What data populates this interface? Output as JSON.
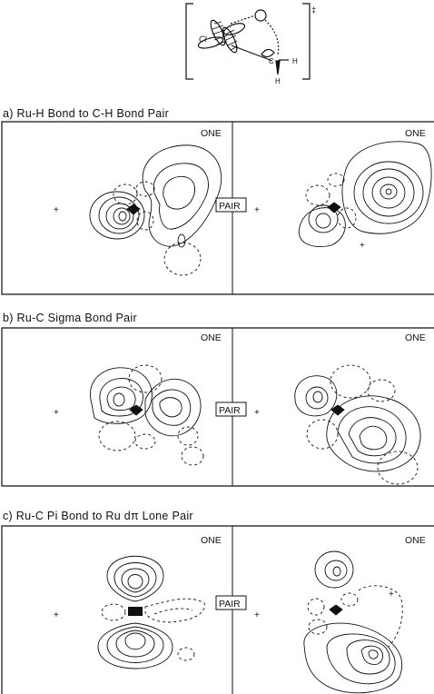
{
  "header_diagram": {
    "labels": {
      "cl": "Cl",
      "c": "C",
      "h1": "H",
      "h2": "H",
      "charge": "‡"
    }
  },
  "sections": [
    {
      "title": "a) Ru-H Bond to C-H Bond Pair",
      "left_tag": "ONE",
      "right_tag": "ONE",
      "pair_label": "PAIR"
    },
    {
      "title": "b) Ru-C Sigma Bond Pair",
      "left_tag": "ONE",
      "right_tag": "ONE",
      "pair_label": "PAIR"
    },
    {
      "title": "c) Ru-C Pi Bond to Ru dπ Lone Pair",
      "left_tag": "ONE",
      "right_tag": "ONE",
      "pair_label": "PAIR"
    }
  ]
}
